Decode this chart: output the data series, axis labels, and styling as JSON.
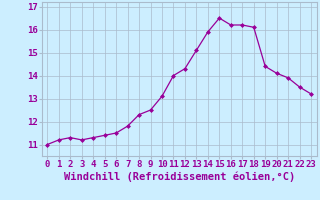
{
  "x": [
    0,
    1,
    2,
    3,
    4,
    5,
    6,
    7,
    8,
    9,
    10,
    11,
    12,
    13,
    14,
    15,
    16,
    17,
    18,
    19,
    20,
    21,
    22,
    23
  ],
  "y": [
    11.0,
    11.2,
    11.3,
    11.2,
    11.3,
    11.4,
    11.5,
    11.8,
    12.3,
    12.5,
    13.1,
    14.0,
    14.3,
    15.1,
    15.9,
    16.5,
    16.2,
    16.2,
    16.1,
    14.4,
    14.1,
    13.9,
    13.5,
    13.2
  ],
  "line_color": "#990099",
  "marker": "D",
  "marker_size": 2,
  "bg_color": "#cceeff",
  "grid_color": "#aabbcc",
  "xlabel": "Windchill (Refroidissement éolien,°C)",
  "xlim": [
    -0.5,
    23.5
  ],
  "ylim": [
    10.5,
    17.2
  ],
  "yticks": [
    11,
    12,
    13,
    14,
    15,
    16,
    17
  ],
  "xticks": [
    0,
    1,
    2,
    3,
    4,
    5,
    6,
    7,
    8,
    9,
    10,
    11,
    12,
    13,
    14,
    15,
    16,
    17,
    18,
    19,
    20,
    21,
    22,
    23
  ],
  "tick_label_color": "#990099",
  "tick_label_fontsize": 6.5,
  "xlabel_fontsize": 7.5,
  "xlabel_color": "#990099"
}
